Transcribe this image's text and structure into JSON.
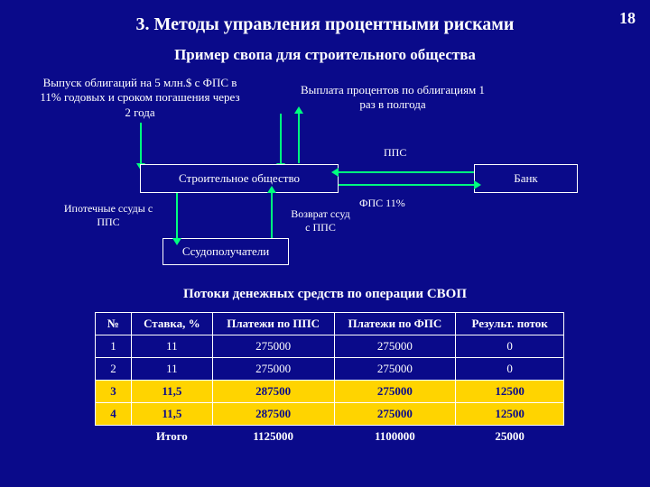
{
  "page_number": "18",
  "title": "3. Методы управления процентными рисками",
  "subtitle": "Пример свопа для строительного общества",
  "desc_left": "Выпуск облигаций на 5 млн.$ с ФПС в 11% годовых и сроком погашения через 2 года",
  "desc_right": "Выплата процентов по облигациям 1 раз в полгода",
  "box_society": "Строительное общество",
  "box_bank": "Банк",
  "box_borrowers": "Ссудополучатели",
  "lbl_pps_top": "ППС",
  "lbl_fps": "ФПС 11%",
  "lbl_mortgage": "Ипотечные ссуды с ППС",
  "lbl_return": "Возврат ссуд с ППС",
  "table_title": "Потоки денежных средств по операции СВОП",
  "columns": [
    "№",
    "Ставка, %",
    "Платежи по ППС",
    "Платежи по ФПС",
    "Результ. поток"
  ],
  "rows": [
    {
      "n": "1",
      "rate": "11",
      "pps": "275000",
      "fps": "275000",
      "res": "0",
      "hl": false
    },
    {
      "n": "2",
      "rate": "11",
      "pps": "275000",
      "fps": "275000",
      "res": "0",
      "hl": false
    },
    {
      "n": "3",
      "rate": "11,5",
      "pps": "287500",
      "fps": "275000",
      "res": "12500",
      "hl": true
    },
    {
      "n": "4",
      "rate": "11,5",
      "pps": "287500",
      "fps": "275000",
      "res": "12500",
      "hl": true
    }
  ],
  "footer": {
    "label": "Итого",
    "pps": "1125000",
    "fps": "1100000",
    "res": "25000"
  },
  "colors": {
    "bg": "#0a0a8a",
    "arrow": "#00ff7f",
    "hl": "#ffd400"
  }
}
